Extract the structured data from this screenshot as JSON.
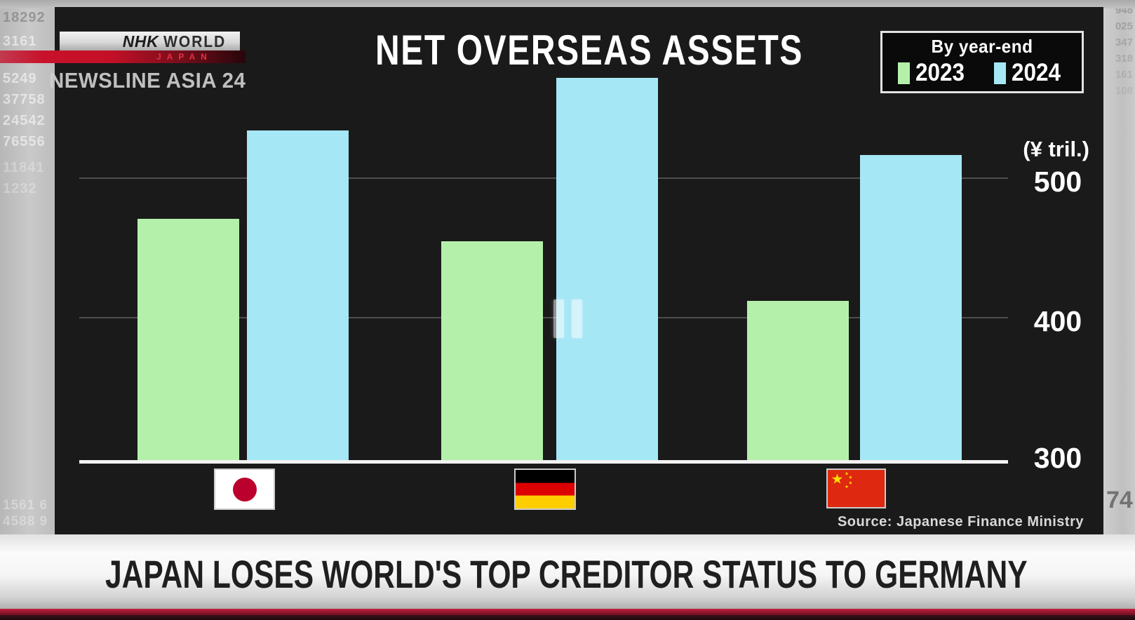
{
  "broadcaster": {
    "logo_nhk": "NHK",
    "logo_world": "WORLD",
    "logo_japan": "JAPAN",
    "program": "NEWSLINE ASIA 24"
  },
  "chart_data": {
    "type": "bar",
    "title": "NET OVERSEAS ASSETS",
    "legend_title": "By year-end",
    "ylabel": "(¥ tril.)",
    "categories": [
      "Japan",
      "Germany",
      "China"
    ],
    "series": [
      {
        "name": "2023",
        "color": "#b5f0ab",
        "values": [
          471,
          455,
          413
        ]
      },
      {
        "name": "2024",
        "color": "#a5e7f5",
        "values": [
          533,
          570,
          516
        ]
      }
    ],
    "y_ticks": [
      "500",
      "400",
      "300"
    ],
    "ylim": [
      300,
      575
    ],
    "grid": true,
    "legend_position": "top-right",
    "source": "Source: Japanese Finance Ministry"
  },
  "icons": {
    "player": "pause-icon",
    "flags": [
      "japan-flag",
      "germany-flag",
      "china-flag"
    ]
  },
  "player": {
    "state": "paused"
  },
  "headline": "JAPAN LOSES WORLD'S TOP CREDITOR STATUS TO GERMANY",
  "colors": {
    "bar_2023": "#b5f0ab",
    "bar_2024": "#a5e7f5",
    "panel_bg": "#1a1a1a",
    "grid": "#4e4e4e",
    "axis": "#f2f2f2",
    "nhk_red": "#c8112a",
    "banner_red_line": "#9c1830"
  },
  "background": {
    "left_ticker": [
      "18292",
      "3161",
      "5249",
      "37758",
      "24542",
      "76556",
      "11841",
      "1232"
    ],
    "left_bottom": [
      "1561  6",
      "4588  9"
    ],
    "right_ticker": [
      "948",
      "025",
      "347",
      "318",
      "161",
      "108"
    ],
    "right_number": "74"
  }
}
